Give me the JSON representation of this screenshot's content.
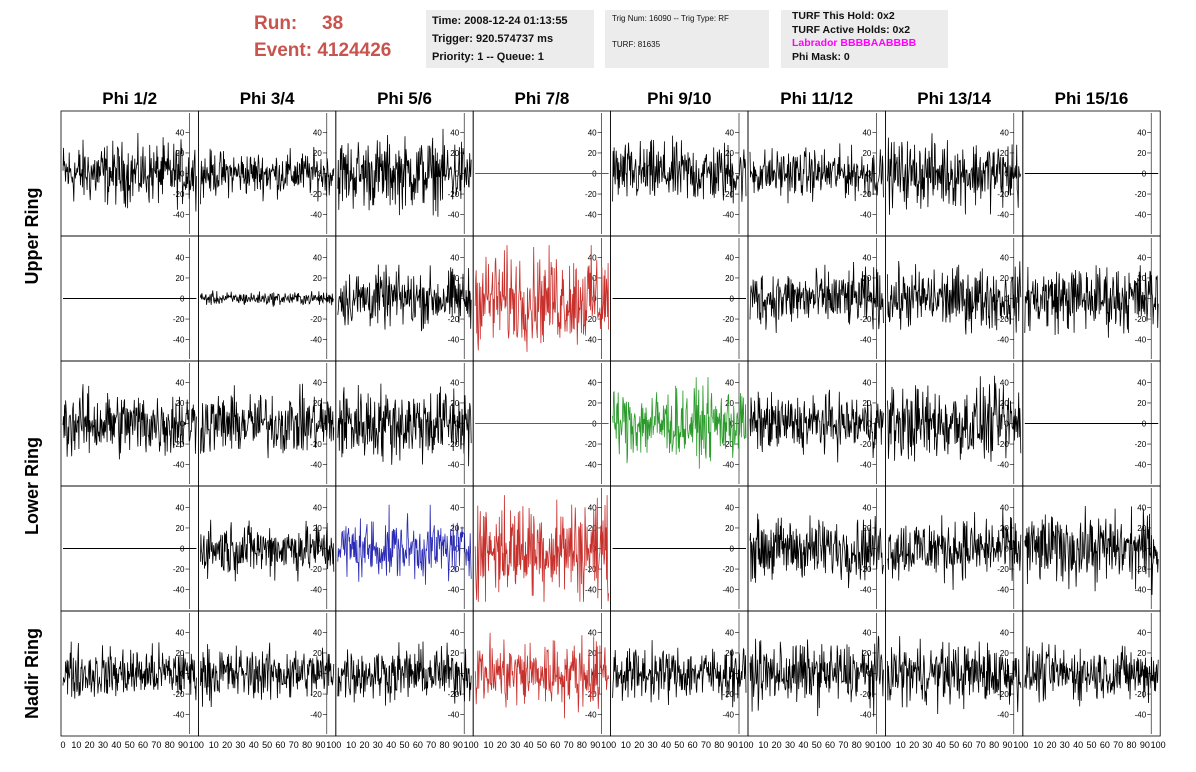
{
  "header": {
    "run_label": "Run:",
    "run_value": "38",
    "event_label": "Event:",
    "event_value": "4124426",
    "time": "Time: 2008-12-24 01:13:55",
    "trigger": "Trigger: 920.574737 ms",
    "priority": "Priority: 1 -- Queue: 1",
    "trig_num": "Trig Num: 16090 -- Trig Type: RF",
    "turf": "TURF: 81635",
    "turf_this_hold": "TURF This Hold: 0x2",
    "turf_active_holds": "TURF Active Holds: 0x2",
    "labrador": "Labrador BBBBAABBBB",
    "phi_mask": "Phi Mask: 0"
  },
  "chart_data": {
    "type": "line",
    "title": "",
    "columns": [
      "Phi 1/2",
      "Phi 3/4",
      "Phi 5/6",
      "Phi 7/8",
      "Phi 9/10",
      "Phi 11/12",
      "Phi 13/14",
      "Phi 15/16"
    ],
    "rows": [
      "Upper Ring",
      "Lower Ring",
      "Nadir Ring"
    ],
    "x_ticks": [
      "0",
      "10",
      "20",
      "30",
      "40",
      "50",
      "60",
      "70",
      "80",
      "90",
      "100"
    ],
    "y_ticks": [
      "40",
      "20",
      "0",
      "-20",
      "-40"
    ],
    "xlim": [
      0,
      100
    ],
    "ylim": [
      -55,
      55
    ],
    "colors": {
      "normal": "#000000",
      "red": "#c8302c",
      "green": "#2a9a2a",
      "blue": "#2a2ab4"
    },
    "panels": [
      [
        {
          "amp": 14,
          "color": "normal"
        },
        {
          "amp": 10,
          "color": "normal"
        },
        {
          "amp": 16,
          "color": "normal"
        },
        {
          "amp": 0,
          "color": "red"
        },
        {
          "amp": 14,
          "color": "normal"
        },
        {
          "amp": 11,
          "color": "normal"
        },
        {
          "amp": 15,
          "color": "normal"
        },
        {
          "amp": 0,
          "color": "normal"
        }
      ],
      [
        {
          "amp": 0,
          "color": "normal"
        },
        {
          "amp": 3,
          "color": "normal"
        },
        {
          "amp": 13,
          "color": "normal"
        },
        {
          "amp": 21,
          "color": "red"
        },
        {
          "amp": 0,
          "color": "normal"
        },
        {
          "amp": 13,
          "color": "normal"
        },
        {
          "amp": 14,
          "color": "normal"
        },
        {
          "amp": 15,
          "color": "normal"
        }
      ],
      [
        {
          "amp": 15,
          "color": "normal"
        },
        {
          "amp": 14,
          "color": "normal"
        },
        {
          "amp": 17,
          "color": "normal"
        },
        {
          "amp": 0,
          "color": "red"
        },
        {
          "amp": 16,
          "color": "green"
        },
        {
          "amp": 13,
          "color": "normal"
        },
        {
          "amp": 17,
          "color": "normal"
        },
        {
          "amp": 0,
          "color": "normal"
        }
      ],
      [
        {
          "amp": 0,
          "color": "normal"
        },
        {
          "amp": 12,
          "color": "normal"
        },
        {
          "amp": 14,
          "color": "blue"
        },
        {
          "amp": 22,
          "color": "red"
        },
        {
          "amp": 0,
          "color": "normal"
        },
        {
          "amp": 14,
          "color": "normal"
        },
        {
          "amp": 14,
          "color": "normal"
        },
        {
          "amp": 16,
          "color": "normal"
        }
      ],
      [
        {
          "amp": 12,
          "color": "normal"
        },
        {
          "amp": 12,
          "color": "normal"
        },
        {
          "amp": 12,
          "color": "normal"
        },
        {
          "amp": 16,
          "color": "red"
        },
        {
          "amp": 12,
          "color": "normal"
        },
        {
          "amp": 14,
          "color": "normal"
        },
        {
          "amp": 14,
          "color": "normal"
        },
        {
          "amp": 12,
          "color": "normal"
        }
      ]
    ]
  }
}
